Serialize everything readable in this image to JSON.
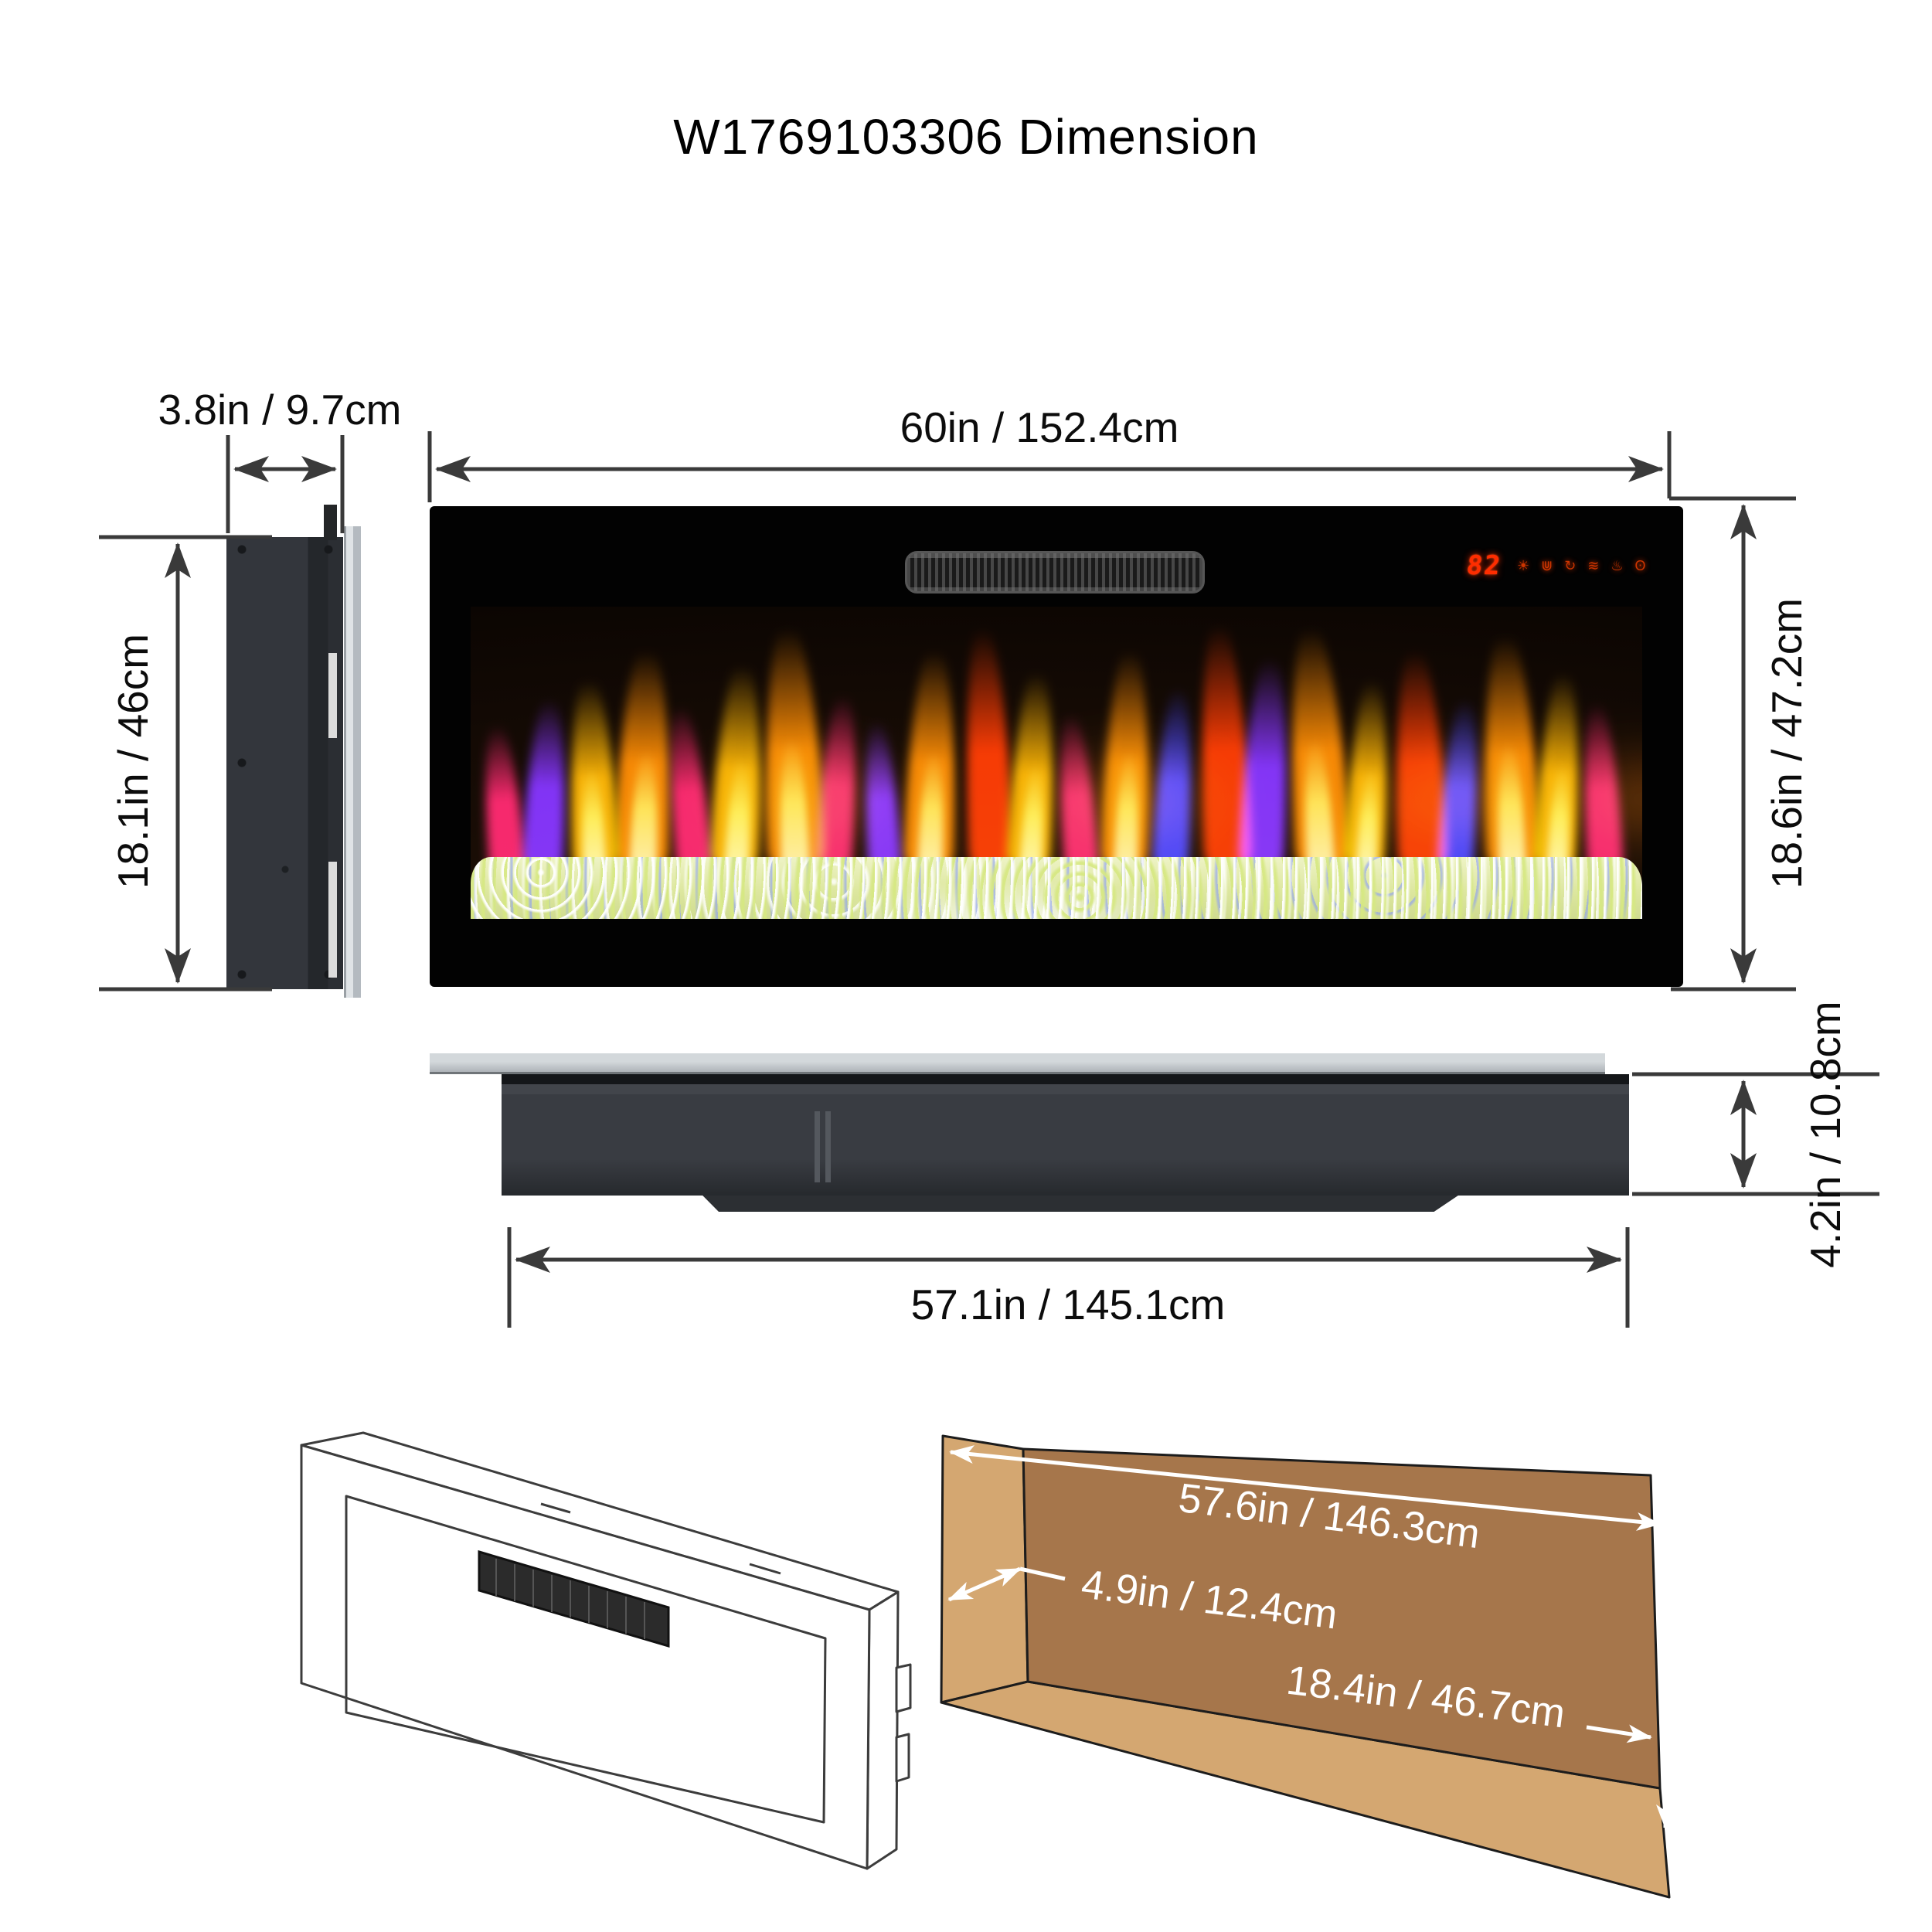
{
  "title": "W1769103306  Dimension",
  "dimensions": {
    "side_depth": "3.8in / 9.7cm",
    "side_height": "18.1in / 46cm",
    "front_width": "60in / 152.4cm",
    "front_height": "18.6in / 47.2cm",
    "base_width": "57.1in / 145.1cm",
    "base_depth": "4.2in / 10.8cm",
    "niche_width": "57.6in / 146.3cm",
    "niche_depth": "4.9in / 12.4cm",
    "niche_height": "18.4in / 46.7cm"
  },
  "display": {
    "temperature": "82",
    "icons": [
      {
        "name": "brightness-icon",
        "glyph": "☀"
      },
      {
        "name": "flame-bed-icon",
        "glyph": "⋓"
      },
      {
        "name": "timer-icon",
        "glyph": "↻"
      },
      {
        "name": "heat-icon",
        "glyph": "≋"
      },
      {
        "name": "flame-icon",
        "glyph": "♨"
      },
      {
        "name": "power-icon",
        "glyph": "ʘ"
      }
    ]
  },
  "colors": {
    "led_red": "#ff2d00",
    "niche_back_wall": "#a6764b",
    "niche_side_wall": "#d4a771",
    "crystal_bed": "#e9efbe",
    "flame_palette": [
      "#ff8800",
      "#ffb300",
      "#ff3300",
      "#ff1f6e",
      "#7a2bff",
      "#2f3bff"
    ]
  }
}
